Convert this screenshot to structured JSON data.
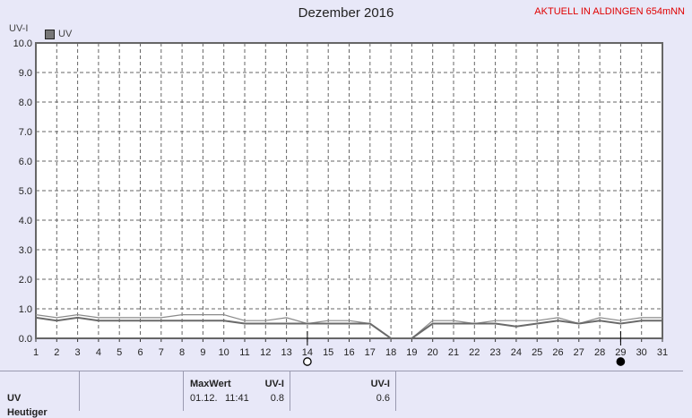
{
  "header": {
    "title": "Dezember 2016",
    "station": "AKTUELL IN ALDINGEN 654mNN"
  },
  "chart_data": {
    "type": "line",
    "ylabel": "UV-I",
    "ylim": [
      0,
      10
    ],
    "y_ticks": [
      "0.0",
      "1.0",
      "2.0",
      "3.0",
      "4.0",
      "5.0",
      "6.0",
      "7.0",
      "8.0",
      "9.0",
      "10.0"
    ],
    "x": [
      1,
      2,
      3,
      4,
      5,
      6,
      7,
      8,
      9,
      10,
      11,
      12,
      13,
      14,
      15,
      16,
      17,
      18,
      19,
      20,
      21,
      22,
      23,
      24,
      25,
      26,
      27,
      28,
      29,
      30,
      31
    ],
    "legend": [
      {
        "name": "UV",
        "color": "#777777"
      }
    ],
    "series": [
      {
        "name": "UV",
        "style": "upper",
        "values": [
          0.8,
          0.7,
          0.8,
          0.7,
          0.7,
          0.7,
          0.7,
          0.8,
          0.8,
          0.8,
          0.6,
          0.6,
          0.7,
          0.5,
          0.6,
          0.6,
          0.5,
          0.0,
          0.0,
          0.6,
          0.6,
          0.5,
          0.6,
          0.6,
          0.6,
          0.7,
          0.5,
          0.7,
          0.6,
          0.7,
          0.7
        ]
      },
      {
        "name": "UV",
        "style": "lower",
        "values": [
          0.7,
          0.6,
          0.7,
          0.6,
          0.6,
          0.6,
          0.6,
          0.6,
          0.6,
          0.6,
          0.5,
          0.5,
          0.5,
          0.5,
          0.5,
          0.5,
          0.5,
          0.0,
          0.0,
          0.5,
          0.5,
          0.5,
          0.5,
          0.4,
          0.5,
          0.6,
          0.5,
          0.6,
          0.5,
          0.6,
          0.6
        ]
      }
    ],
    "moon_markers": [
      {
        "day": 14,
        "phase": "full"
      },
      {
        "day": 29,
        "phase": "new"
      }
    ],
    "grid": true
  },
  "table": {
    "row_label": "UV",
    "row_label_2": "Heutiger",
    "max_label": "MaxWert",
    "max_unit": "UV-I",
    "max_date": "01.12.",
    "max_time": "11:41",
    "max_value": "0.8",
    "avg_unit": "UV-I",
    "avg_value": "0.6"
  }
}
